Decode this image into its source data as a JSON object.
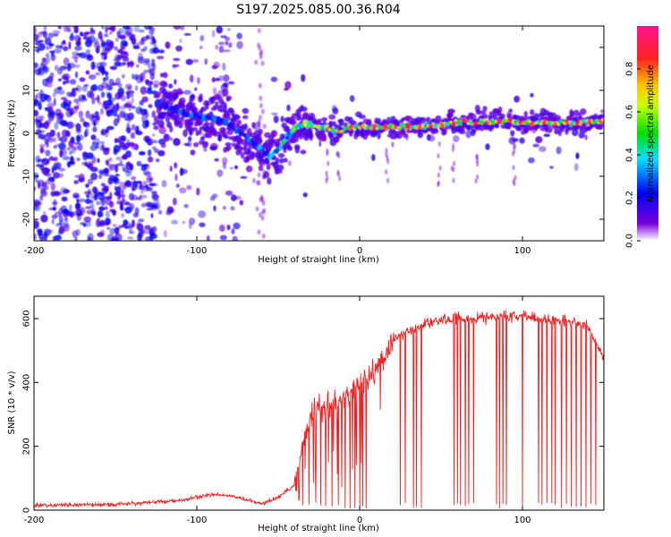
{
  "title": "S197.2025.085.00.36.R04",
  "colors": {
    "snr_line": "#ee2222",
    "axis": "#000000"
  },
  "chart_data": [
    {
      "type": "heatmap",
      "xlabel": "Height of straight line (km)",
      "ylabel": "Frequency (Hz)",
      "xlim": [
        -200,
        150
      ],
      "ylim": [
        -25,
        25
      ],
      "xticks": [
        -200,
        -100,
        0,
        100
      ],
      "yticks": [
        -20,
        -10,
        0,
        10,
        20
      ],
      "colormap": "rainbow (purple → blue → cyan → green → yellow → red → magenta)",
      "colorbar": {
        "label": "Normalized spectral amplitude",
        "range": [
          0,
          1
        ],
        "ticks": [
          "0.0",
          "0.2",
          "0.4",
          "0.6",
          "0.8"
        ]
      },
      "ridge": {
        "x": [
          -125,
          -110,
          -100,
          -90,
          -80,
          -70,
          -62,
          -55,
          -50,
          -45,
          -40,
          -35,
          -30,
          -25,
          -20,
          -15,
          -10,
          -5,
          0,
          10,
          20,
          30,
          40,
          50,
          60,
          70,
          80,
          90,
          100,
          110,
          120,
          130,
          140,
          150
        ],
        "y": [
          7,
          5,
          4,
          3.5,
          2,
          -1,
          -3,
          -5.5,
          -4,
          -1,
          1,
          2,
          2,
          1.5,
          1.5,
          0,
          1,
          1.5,
          1.5,
          1.5,
          1.5,
          1.5,
          1.5,
          2,
          2.5,
          2.5,
          2.5,
          3,
          2.5,
          2.5,
          2.5,
          2.5,
          2.5,
          3
        ],
        "amplitude": [
          0.25,
          0.3,
          0.3,
          0.35,
          0.3,
          0.3,
          0.35,
          0.4,
          0.45,
          0.5,
          0.55,
          0.65,
          0.7,
          0.7,
          0.75,
          0.8,
          0.85,
          0.8,
          0.85,
          0.85,
          0.9,
          0.85,
          0.9,
          0.85,
          0.9,
          0.95,
          0.9,
          0.95,
          0.9,
          0.9,
          0.85,
          0.9,
          0.85,
          0.85
        ]
      }
    },
    {
      "type": "line",
      "xlabel": "Height of straight line (km)",
      "ylabel": "SNR (10 * v/v)",
      "xlim": [
        -200,
        150
      ],
      "ylim": [
        0,
        670
      ],
      "xticks": [
        -200,
        -100,
        0,
        100
      ],
      "yticks": [
        0,
        200,
        400,
        600
      ],
      "envelope": {
        "x": [
          -200,
          -150,
          -110,
          -100,
          -90,
          -80,
          -60,
          -50,
          -40,
          -35,
          -30,
          -20,
          -10,
          0,
          10,
          20,
          30,
          40,
          50,
          60,
          80,
          100,
          110,
          120,
          130,
          140,
          150
        ],
        "y": [
          15,
          18,
          30,
          40,
          50,
          45,
          20,
          40,
          80,
          200,
          300,
          330,
          340,
          390,
          440,
          530,
          560,
          585,
          595,
          600,
          605,
          610,
          600,
          595,
          590,
          580,
          470
        ]
      },
      "dropouts_x": [
        -35,
        -31,
        -27,
        -24,
        -21,
        -17,
        -13,
        -9,
        -6,
        -3,
        0,
        2,
        4,
        25,
        28,
        33,
        35,
        38,
        58,
        60,
        62,
        65,
        67,
        70,
        84,
        86,
        88,
        90,
        100,
        110,
        112,
        115,
        118,
        120,
        124,
        127,
        130,
        133,
        136,
        139,
        142,
        145
      ]
    }
  ]
}
